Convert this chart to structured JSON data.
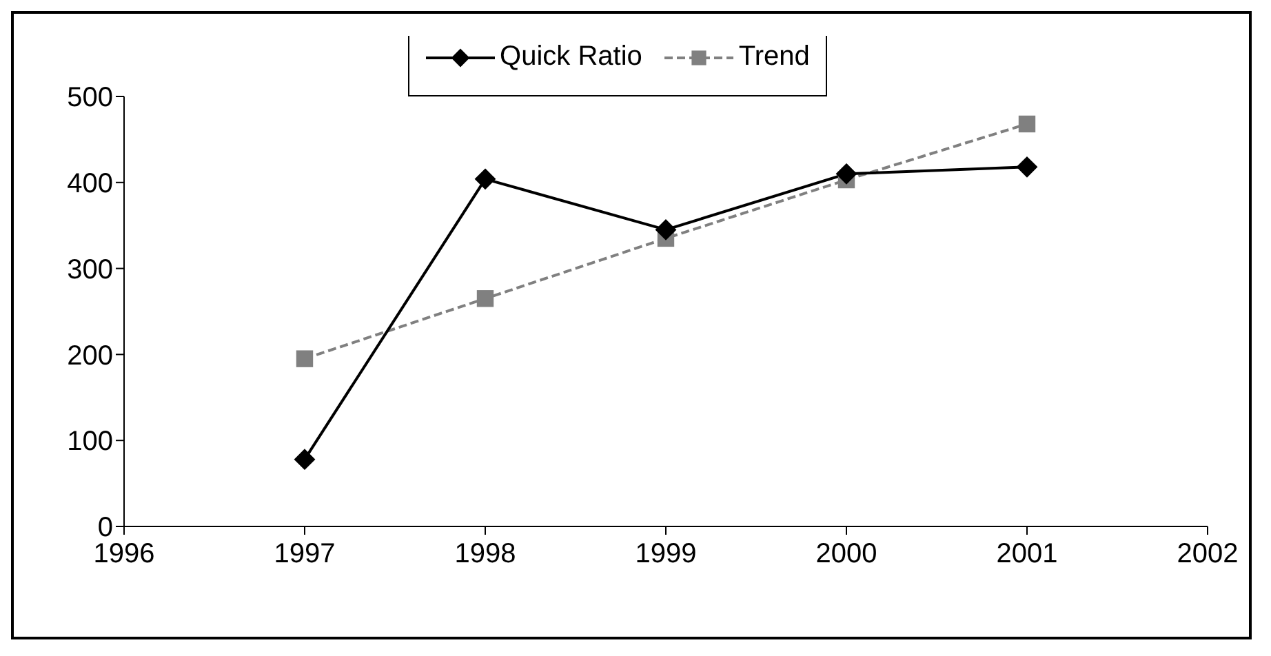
{
  "chart_data": {
    "type": "line",
    "x": [
      1997,
      1998,
      1999,
      2000,
      2001
    ],
    "series": [
      {
        "name": "Quick Ratio",
        "color": "#000000",
        "values": [
          78,
          404,
          345,
          410,
          418
        ],
        "marker": "diamond",
        "line_style": "solid"
      },
      {
        "name": "Trend",
        "color": "#808080",
        "values": [
          195,
          265,
          335,
          403,
          468
        ],
        "marker": "square",
        "line_style": "dashed"
      }
    ],
    "xlim": [
      1996,
      2002
    ],
    "xticks": [
      1996,
      1997,
      1998,
      1999,
      2000,
      2001,
      2002
    ],
    "ylim": [
      0,
      500
    ],
    "yticks": [
      0,
      100,
      200,
      300,
      400,
      500
    ],
    "grid": false,
    "legend": "top"
  }
}
